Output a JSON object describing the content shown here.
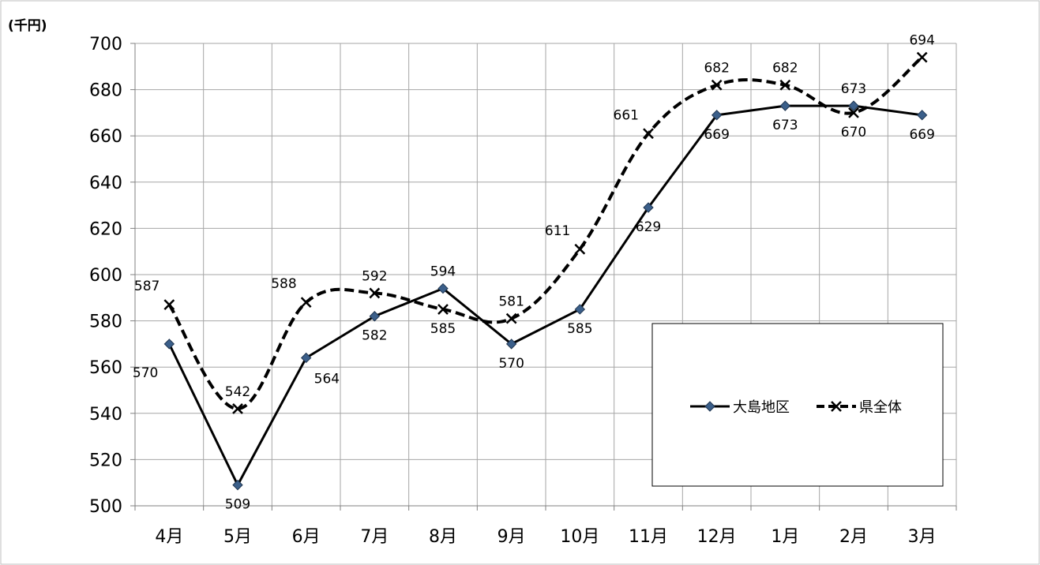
{
  "chart_data": {
    "type": "line",
    "unit_label": "(千円)",
    "title": "",
    "xlabel": "",
    "ylabel": "",
    "categories": [
      "4月",
      "5月",
      "6月",
      "7月",
      "8月",
      "9月",
      "10月",
      "11月",
      "12月",
      "1月",
      "2月",
      "3月"
    ],
    "ylim": [
      500,
      700
    ],
    "yticks": [
      500,
      520,
      540,
      560,
      580,
      600,
      620,
      640,
      660,
      680,
      700
    ],
    "grid": true,
    "legend_position": "right, inside plot",
    "series": [
      {
        "name": "大島地区",
        "values": [
          570,
          509,
          564,
          582,
          594,
          570,
          585,
          629,
          669,
          673,
          673,
          669
        ],
        "line_style": "solid",
        "marker": "diamond",
        "color": "#000000",
        "marker_color": "#3b5f8a",
        "label_position": [
          "left",
          "below",
          "right",
          "below",
          "above",
          "below",
          "below",
          "below",
          "below",
          "below",
          "above",
          "below"
        ]
      },
      {
        "name": "県全体",
        "values": [
          587,
          542,
          588,
          592,
          585,
          581,
          611,
          661,
          682,
          682,
          670,
          694
        ],
        "line_style": "dashed",
        "marker": "x",
        "color": "#000000",
        "label_position": [
          "above-left",
          "above",
          "above-left",
          "above",
          "below",
          "above",
          "above-left",
          "above-left",
          "above",
          "above",
          "below",
          "above"
        ]
      }
    ]
  },
  "colors": {
    "grid": "#a6a6a6",
    "axis": "#808080",
    "frame": "#bfbfbf",
    "background": "#ffffff"
  }
}
